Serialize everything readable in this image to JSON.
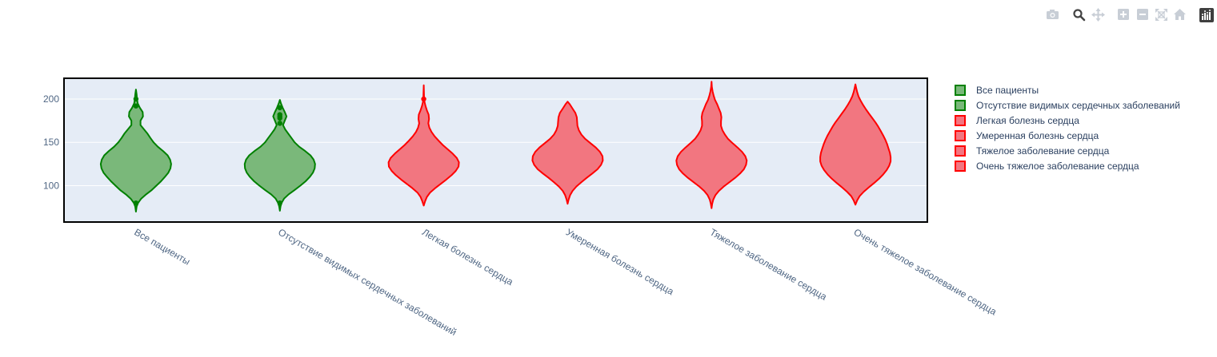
{
  "modebar": {
    "buttons": [
      {
        "name": "camera-icon"
      },
      {
        "name": "zoom-icon"
      },
      {
        "name": "pan-icon"
      },
      {
        "name": "zoom-in-icon"
      },
      {
        "name": "zoom-out-icon"
      },
      {
        "name": "autoscale-icon"
      },
      {
        "name": "reset-axes-icon"
      },
      {
        "name": "plotly-logo-icon"
      }
    ]
  },
  "colors": {
    "plot_bg": "#e5ecf6",
    "grid": "#ffffff",
    "green_fill": "#7ab87a",
    "green_line": "#008000",
    "red_fill": "#f27680",
    "red_line": "#ff0000",
    "tick_text": "#506784",
    "legend_text": "#2a3f5f"
  },
  "chart_data": {
    "type": "violin",
    "title": "",
    "xlabel": "",
    "ylabel": "",
    "ylim": [
      58,
      224
    ],
    "y_ticks": [
      100,
      150,
      200
    ],
    "grid": true,
    "legend_position": "right",
    "categories": [
      "Все пациенты",
      "Отсутствие видимых сердечных заболеваний",
      "Легкая болезнь сердца",
      "Умеренная болезнь сердца",
      "Тяжелое заболевание сердца",
      "Очень тяжелое заболевание сердца"
    ],
    "series": [
      {
        "name": "Все пациенты",
        "color": "green",
        "density": [
          [
            70,
            0.0
          ],
          [
            76,
            0.02
          ],
          [
            80,
            0.06
          ],
          [
            85,
            0.15
          ],
          [
            90,
            0.29
          ],
          [
            95,
            0.45
          ],
          [
            100,
            0.58
          ],
          [
            105,
            0.71
          ],
          [
            110,
            0.82
          ],
          [
            115,
            0.92
          ],
          [
            120,
            0.98
          ],
          [
            125,
            1.0
          ],
          [
            130,
            0.97
          ],
          [
            135,
            0.9
          ],
          [
            140,
            0.77
          ],
          [
            145,
            0.62
          ],
          [
            150,
            0.5
          ],
          [
            155,
            0.41
          ],
          [
            160,
            0.33
          ],
          [
            165,
            0.23
          ],
          [
            170,
            0.13
          ],
          [
            175,
            0.13
          ],
          [
            180,
            0.2
          ],
          [
            185,
            0.19
          ],
          [
            190,
            0.11
          ],
          [
            195,
            0.05
          ],
          [
            200,
            0.03
          ],
          [
            205,
            0.02
          ],
          [
            211,
            0.0
          ]
        ],
        "points": [
          80,
          192,
          200
        ]
      },
      {
        "name": "Отсутствие видимых сердечных заболеваний",
        "color": "green",
        "density": [
          [
            71,
            0.0
          ],
          [
            76,
            0.02
          ],
          [
            80,
            0.05
          ],
          [
            85,
            0.12
          ],
          [
            90,
            0.25
          ],
          [
            95,
            0.42
          ],
          [
            100,
            0.58
          ],
          [
            105,
            0.73
          ],
          [
            110,
            0.85
          ],
          [
            115,
            0.94
          ],
          [
            120,
            0.99
          ],
          [
            125,
            1.0
          ],
          [
            130,
            0.96
          ],
          [
            135,
            0.87
          ],
          [
            140,
            0.72
          ],
          [
            145,
            0.55
          ],
          [
            150,
            0.42
          ],
          [
            155,
            0.33
          ],
          [
            160,
            0.24
          ],
          [
            165,
            0.15
          ],
          [
            170,
            0.09
          ],
          [
            175,
            0.14
          ],
          [
            180,
            0.19
          ],
          [
            185,
            0.14
          ],
          [
            190,
            0.08
          ],
          [
            195,
            0.03
          ],
          [
            199,
            0.0
          ]
        ],
        "points": [
          80,
          172,
          178,
          180,
          182,
          190
        ]
      },
      {
        "name": "Легкая болезнь сердца",
        "color": "red",
        "density": [
          [
            77,
            0.0
          ],
          [
            82,
            0.04
          ],
          [
            87,
            0.09
          ],
          [
            92,
            0.18
          ],
          [
            97,
            0.32
          ],
          [
            102,
            0.48
          ],
          [
            107,
            0.64
          ],
          [
            112,
            0.79
          ],
          [
            117,
            0.91
          ],
          [
            122,
            0.99
          ],
          [
            127,
            1.0
          ],
          [
            132,
            0.94
          ],
          [
            137,
            0.82
          ],
          [
            142,
            0.68
          ],
          [
            147,
            0.54
          ],
          [
            152,
            0.42
          ],
          [
            157,
            0.31
          ],
          [
            162,
            0.22
          ],
          [
            167,
            0.16
          ],
          [
            172,
            0.13
          ],
          [
            177,
            0.15
          ],
          [
            182,
            0.14
          ],
          [
            187,
            0.09
          ],
          [
            192,
            0.05
          ],
          [
            197,
            0.02
          ],
          [
            202,
            0.01
          ],
          [
            216,
            0.0
          ]
        ],
        "points": [
          200
        ]
      },
      {
        "name": "Умеренная болезнь сердца",
        "color": "red",
        "density": [
          [
            79,
            0.0
          ],
          [
            84,
            0.03
          ],
          [
            89,
            0.07
          ],
          [
            94,
            0.14
          ],
          [
            99,
            0.25
          ],
          [
            104,
            0.39
          ],
          [
            109,
            0.54
          ],
          [
            114,
            0.7
          ],
          [
            119,
            0.85
          ],
          [
            124,
            0.95
          ],
          [
            129,
            1.0
          ],
          [
            134,
            0.99
          ],
          [
            139,
            0.92
          ],
          [
            144,
            0.8
          ],
          [
            149,
            0.65
          ],
          [
            154,
            0.5
          ],
          [
            159,
            0.39
          ],
          [
            164,
            0.32
          ],
          [
            169,
            0.28
          ],
          [
            174,
            0.27
          ],
          [
            179,
            0.26
          ],
          [
            184,
            0.22
          ],
          [
            189,
            0.14
          ],
          [
            194,
            0.06
          ],
          [
            197,
            0.0
          ]
        ],
        "points": []
      },
      {
        "name": "Тяжелое заболевание сердца",
        "color": "red",
        "density": [
          [
            74,
            0.0
          ],
          [
            79,
            0.02
          ],
          [
            84,
            0.05
          ],
          [
            89,
            0.11
          ],
          [
            94,
            0.21
          ],
          [
            99,
            0.35
          ],
          [
            104,
            0.51
          ],
          [
            109,
            0.67
          ],
          [
            114,
            0.81
          ],
          [
            119,
            0.92
          ],
          [
            124,
            0.98
          ],
          [
            129,
            1.0
          ],
          [
            134,
            0.96
          ],
          [
            139,
            0.87
          ],
          [
            144,
            0.74
          ],
          [
            149,
            0.6
          ],
          [
            154,
            0.47
          ],
          [
            159,
            0.38
          ],
          [
            164,
            0.31
          ],
          [
            169,
            0.27
          ],
          [
            174,
            0.27
          ],
          [
            179,
            0.28
          ],
          [
            184,
            0.26
          ],
          [
            189,
            0.21
          ],
          [
            194,
            0.16
          ],
          [
            199,
            0.1
          ],
          [
            204,
            0.06
          ],
          [
            209,
            0.03
          ],
          [
            214,
            0.01
          ],
          [
            220,
            0.0
          ]
        ],
        "points": []
      },
      {
        "name": "Очень тяжелое заболевание сердца",
        "color": "red",
        "density": [
          [
            78,
            0.0
          ],
          [
            83,
            0.05
          ],
          [
            88,
            0.12
          ],
          [
            93,
            0.24
          ],
          [
            98,
            0.38
          ],
          [
            103,
            0.53
          ],
          [
            108,
            0.67
          ],
          [
            113,
            0.79
          ],
          [
            118,
            0.89
          ],
          [
            123,
            0.96
          ],
          [
            128,
            1.0
          ],
          [
            133,
            1.0
          ],
          [
            138,
            0.98
          ],
          [
            143,
            0.94
          ],
          [
            148,
            0.9
          ],
          [
            153,
            0.85
          ],
          [
            158,
            0.79
          ],
          [
            163,
            0.72
          ],
          [
            168,
            0.65
          ],
          [
            173,
            0.57
          ],
          [
            178,
            0.48
          ],
          [
            183,
            0.39
          ],
          [
            188,
            0.3
          ],
          [
            193,
            0.22
          ],
          [
            198,
            0.15
          ],
          [
            203,
            0.09
          ],
          [
            208,
            0.05
          ],
          [
            213,
            0.02
          ],
          [
            217,
            0.0
          ]
        ],
        "points": []
      }
    ]
  }
}
